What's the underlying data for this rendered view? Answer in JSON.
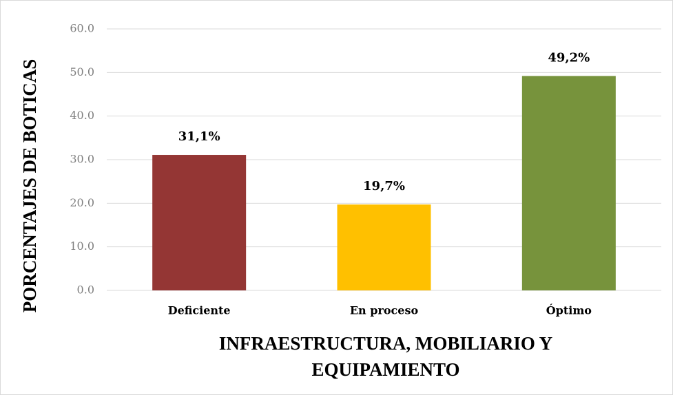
{
  "chart_data": {
    "type": "bar",
    "categories": [
      "Deficiente",
      "En proceso",
      "Óptimo"
    ],
    "values": [
      31.1,
      19.7,
      49.2
    ],
    "value_labels": [
      "31,1%",
      "19,7%",
      "49,2%"
    ],
    "colors": [
      "#943634",
      "#ffc000",
      "#77933c"
    ],
    "ylim": [
      0,
      60
    ],
    "yticks": [
      {
        "value": 0,
        "label": "0.0"
      },
      {
        "value": 10,
        "label": "10.0"
      },
      {
        "value": 20,
        "label": "20.0"
      },
      {
        "value": 30,
        "label": "30.0"
      },
      {
        "value": 40,
        "label": "40.0"
      },
      {
        "value": 50,
        "label": "50.0"
      },
      {
        "value": 60,
        "label": "60.0"
      }
    ],
    "grid": true,
    "xlabel": "INFRAESTRUCTURA, MOBILIARIO Y EQUIPAMIENTO",
    "ylabel": "PORCENTAJES DE BOTICAS"
  }
}
